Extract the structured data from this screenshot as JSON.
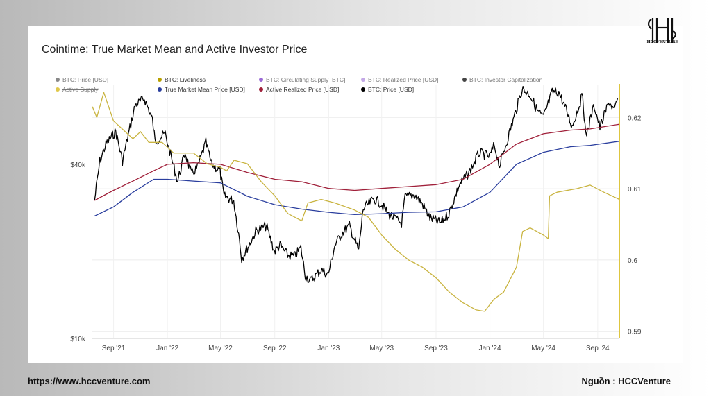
{
  "chart_data": {
    "type": "line",
    "title": "Cointime: True Market Mean and Active Investor Price",
    "legend": [
      {
        "label": "BTC: Price [USD]",
        "color": "#888888",
        "hidden": true
      },
      {
        "label": "BTC: Liveliness",
        "color": "#b8a000",
        "hidden": false
      },
      {
        "label": "BTC: Circulating Supply [BTC]",
        "color": "#9b6bd6",
        "hidden": true
      },
      {
        "label": "BTC: Realized Price [USD]",
        "color": "#c3a8e6",
        "hidden": true
      },
      {
        "label": "BTC: Investor Capitalization",
        "color": "#444444",
        "hidden": true
      },
      {
        "label": "Active Supply",
        "color": "#e0c84a",
        "hidden": true
      },
      {
        "label": "True Market Mean Price [USD]",
        "color": "#2a3e9e",
        "hidden": false
      },
      {
        "label": "Active Realized Price [USD]",
        "color": "#a0203a",
        "hidden": false
      },
      {
        "label": "BTC: Price [USD]",
        "color": "#000000",
        "hidden": false
      }
    ],
    "x_ticks": [
      "Sep '21",
      "Jan '22",
      "May '22",
      "Sep '22",
      "Jan '23",
      "May '23",
      "Sep '23",
      "Jan '24",
      "May '24",
      "Sep '24"
    ],
    "x_tick_dates": [
      "2021-09-01",
      "2022-01-01",
      "2022-05-01",
      "2022-09-01",
      "2023-01-01",
      "2023-05-01",
      "2023-09-01",
      "2024-01-01",
      "2024-05-01",
      "2024-09-01"
    ],
    "x_range": [
      "2021-07-15",
      "2024-10-20"
    ],
    "y_left": {
      "scale": "log",
      "ticks": [
        "$40k",
        "$10k"
      ],
      "tick_values": [
        40000,
        10000
      ],
      "range": [
        10000,
        75000
      ]
    },
    "y_right": {
      "scale": "linear",
      "ticks": [
        "0.62",
        "0.61",
        "0.6",
        "0.59"
      ],
      "tick_values": [
        0.62,
        0.61,
        0.6,
        0.59
      ],
      "range": [
        0.589,
        0.6245
      ]
    },
    "series": [
      {
        "name": "BTC: Price [USD]",
        "color": "#000000",
        "axis": "left",
        "points": [
          [
            "2021-07-20",
            30000
          ],
          [
            "2021-08-01",
            41000
          ],
          [
            "2021-08-15",
            47000
          ],
          [
            "2021-09-06",
            52000
          ],
          [
            "2021-09-21",
            41000
          ],
          [
            "2021-10-10",
            55000
          ],
          [
            "2021-10-20",
            64000
          ],
          [
            "2021-11-10",
            67500
          ],
          [
            "2021-11-28",
            57000
          ],
          [
            "2021-12-04",
            48000
          ],
          [
            "2021-12-27",
            51000
          ],
          [
            "2022-01-10",
            42000
          ],
          [
            "2022-01-24",
            35000
          ],
          [
            "2022-02-10",
            44000
          ],
          [
            "2022-02-24",
            37000
          ],
          [
            "2022-03-10",
            39000
          ],
          [
            "2022-03-29",
            47500
          ],
          [
            "2022-04-11",
            40000
          ],
          [
            "2022-04-30",
            38000
          ],
          [
            "2022-05-09",
            31000
          ],
          [
            "2022-05-31",
            30000
          ],
          [
            "2022-06-13",
            22000
          ],
          [
            "2022-06-18",
            18900
          ],
          [
            "2022-07-08",
            21500
          ],
          [
            "2022-07-20",
            23500
          ],
          [
            "2022-08-13",
            24500
          ],
          [
            "2022-08-31",
            20000
          ],
          [
            "2022-09-13",
            21000
          ],
          [
            "2022-09-30",
            19400
          ],
          [
            "2022-10-15",
            19200
          ],
          [
            "2022-10-30",
            20600
          ],
          [
            "2022-11-09",
            16500
          ],
          [
            "2022-11-21",
            15800
          ],
          [
            "2022-12-15",
            17300
          ],
          [
            "2022-12-31",
            16600
          ],
          [
            "2023-01-15",
            21000
          ],
          [
            "2023-01-31",
            23100
          ],
          [
            "2023-02-17",
            24500
          ],
          [
            "2023-03-10",
            20100
          ],
          [
            "2023-03-20",
            28000
          ],
          [
            "2023-04-14",
            30400
          ],
          [
            "2023-04-30",
            29200
          ],
          [
            "2023-05-15",
            27000
          ],
          [
            "2023-06-15",
            25000
          ],
          [
            "2023-06-23",
            30700
          ],
          [
            "2023-07-14",
            31400
          ],
          [
            "2023-08-01",
            29200
          ],
          [
            "2023-08-18",
            26100
          ],
          [
            "2023-09-11",
            25100
          ],
          [
            "2023-09-30",
            27000
          ],
          [
            "2023-10-24",
            34000
          ],
          [
            "2023-11-15",
            37500
          ],
          [
            "2023-12-08",
            43900
          ],
          [
            "2023-12-31",
            42500
          ],
          [
            "2024-01-11",
            46500
          ],
          [
            "2024-01-23",
            39500
          ],
          [
            "2024-02-15",
            52000
          ],
          [
            "2024-03-01",
            62000
          ],
          [
            "2024-03-14",
            73000
          ],
          [
            "2024-04-01",
            69500
          ],
          [
            "2024-04-17",
            61500
          ],
          [
            "2024-05-01",
            58000
          ],
          [
            "2024-05-21",
            71000
          ],
          [
            "2024-06-05",
            71000
          ],
          [
            "2024-06-24",
            60300
          ],
          [
            "2024-07-05",
            54000
          ],
          [
            "2024-07-29",
            69500
          ],
          [
            "2024-08-05",
            50000
          ],
          [
            "2024-08-24",
            64000
          ],
          [
            "2024-09-06",
            53500
          ],
          [
            "2024-09-27",
            66000
          ],
          [
            "2024-10-09",
            61000
          ],
          [
            "2024-10-16",
            67500
          ]
        ]
      },
      {
        "name": "Active Realized Price [USD]",
        "color": "#a0203a",
        "axis": "left",
        "points": [
          [
            "2021-07-20",
            30000
          ],
          [
            "2021-09-01",
            32500
          ],
          [
            "2021-10-15",
            35000
          ],
          [
            "2021-12-01",
            38000
          ],
          [
            "2022-01-01",
            40000
          ],
          [
            "2022-03-01",
            40500
          ],
          [
            "2022-05-01",
            40000
          ],
          [
            "2022-07-01",
            37500
          ],
          [
            "2022-09-01",
            35500
          ],
          [
            "2022-11-01",
            34800
          ],
          [
            "2023-01-01",
            33000
          ],
          [
            "2023-03-01",
            32500
          ],
          [
            "2023-05-01",
            33000
          ],
          [
            "2023-07-01",
            33500
          ],
          [
            "2023-09-01",
            34000
          ],
          [
            "2023-11-01",
            35500
          ],
          [
            "2024-01-01",
            40000
          ],
          [
            "2024-03-01",
            47000
          ],
          [
            "2024-05-01",
            51000
          ],
          [
            "2024-07-01",
            52500
          ],
          [
            "2024-08-15",
            53000
          ],
          [
            "2024-10-20",
            55000
          ]
        ]
      },
      {
        "name": "True Market Mean Price [USD]",
        "color": "#2a3e9e",
        "axis": "left",
        "points": [
          [
            "2021-07-20",
            26500
          ],
          [
            "2021-09-01",
            28500
          ],
          [
            "2021-10-15",
            32000
          ],
          [
            "2021-12-01",
            35500
          ],
          [
            "2022-01-01",
            35500
          ],
          [
            "2022-03-01",
            35000
          ],
          [
            "2022-05-01",
            34500
          ],
          [
            "2022-07-01",
            31000
          ],
          [
            "2022-09-01",
            29000
          ],
          [
            "2022-11-01",
            28000
          ],
          [
            "2023-01-01",
            27300
          ],
          [
            "2023-03-01",
            26800
          ],
          [
            "2023-05-01",
            27000
          ],
          [
            "2023-07-01",
            27300
          ],
          [
            "2023-09-01",
            27400
          ],
          [
            "2023-11-01",
            28500
          ],
          [
            "2024-01-01",
            32000
          ],
          [
            "2024-03-01",
            40000
          ],
          [
            "2024-05-01",
            44000
          ],
          [
            "2024-07-01",
            46000
          ],
          [
            "2024-08-15",
            46500
          ],
          [
            "2024-10-20",
            48000
          ]
        ]
      },
      {
        "name": "BTC: Liveliness",
        "color": "#c9b440",
        "axis": "right",
        "points": [
          [
            "2021-07-15",
            0.6215
          ],
          [
            "2021-07-25",
            0.62
          ],
          [
            "2021-08-10",
            0.6235
          ],
          [
            "2021-09-01",
            0.6195
          ],
          [
            "2021-10-15",
            0.617
          ],
          [
            "2021-11-01",
            0.618
          ],
          [
            "2021-11-20",
            0.6165
          ],
          [
            "2021-12-20",
            0.6165
          ],
          [
            "2022-01-15",
            0.615
          ],
          [
            "2022-03-01",
            0.615
          ],
          [
            "2022-04-01",
            0.6135
          ],
          [
            "2022-05-01",
            0.613
          ],
          [
            "2022-05-15",
            0.6125
          ],
          [
            "2022-06-01",
            0.614
          ],
          [
            "2022-07-01",
            0.6135
          ],
          [
            "2022-08-01",
            0.611
          ],
          [
            "2022-09-01",
            0.609
          ],
          [
            "2022-10-01",
            0.6065
          ],
          [
            "2022-11-01",
            0.6055
          ],
          [
            "2022-11-15",
            0.608
          ],
          [
            "2022-12-15",
            0.6085
          ],
          [
            "2023-01-15",
            0.608
          ],
          [
            "2023-03-01",
            0.607
          ],
          [
            "2023-04-01",
            0.606
          ],
          [
            "2023-05-01",
            0.6035
          ],
          [
            "2023-06-01",
            0.6015
          ],
          [
            "2023-07-01",
            0.6
          ],
          [
            "2023-08-01",
            0.599
          ],
          [
            "2023-09-01",
            0.5975
          ],
          [
            "2023-10-01",
            0.5955
          ],
          [
            "2023-11-01",
            0.594
          ],
          [
            "2023-12-01",
            0.593
          ],
          [
            "2023-12-20",
            0.5928
          ],
          [
            "2024-01-10",
            0.5945
          ],
          [
            "2024-02-01",
            0.5955
          ],
          [
            "2024-03-01",
            0.599
          ],
          [
            "2024-03-15",
            0.604
          ],
          [
            "2024-04-01",
            0.6045
          ],
          [
            "2024-05-01",
            0.6035
          ],
          [
            "2024-05-12",
            0.603
          ],
          [
            "2024-05-15",
            0.609
          ],
          [
            "2024-06-01",
            0.6095
          ],
          [
            "2024-07-15",
            0.61
          ],
          [
            "2024-08-15",
            0.6105
          ],
          [
            "2024-09-15",
            0.6095
          ],
          [
            "2024-10-20",
            0.6085
          ]
        ]
      }
    ]
  },
  "footer": {
    "url": "https://www.hccventure.com",
    "source": "Nguồn : HCCVenture"
  },
  "logo": {
    "text": "HCCVENTURE"
  }
}
